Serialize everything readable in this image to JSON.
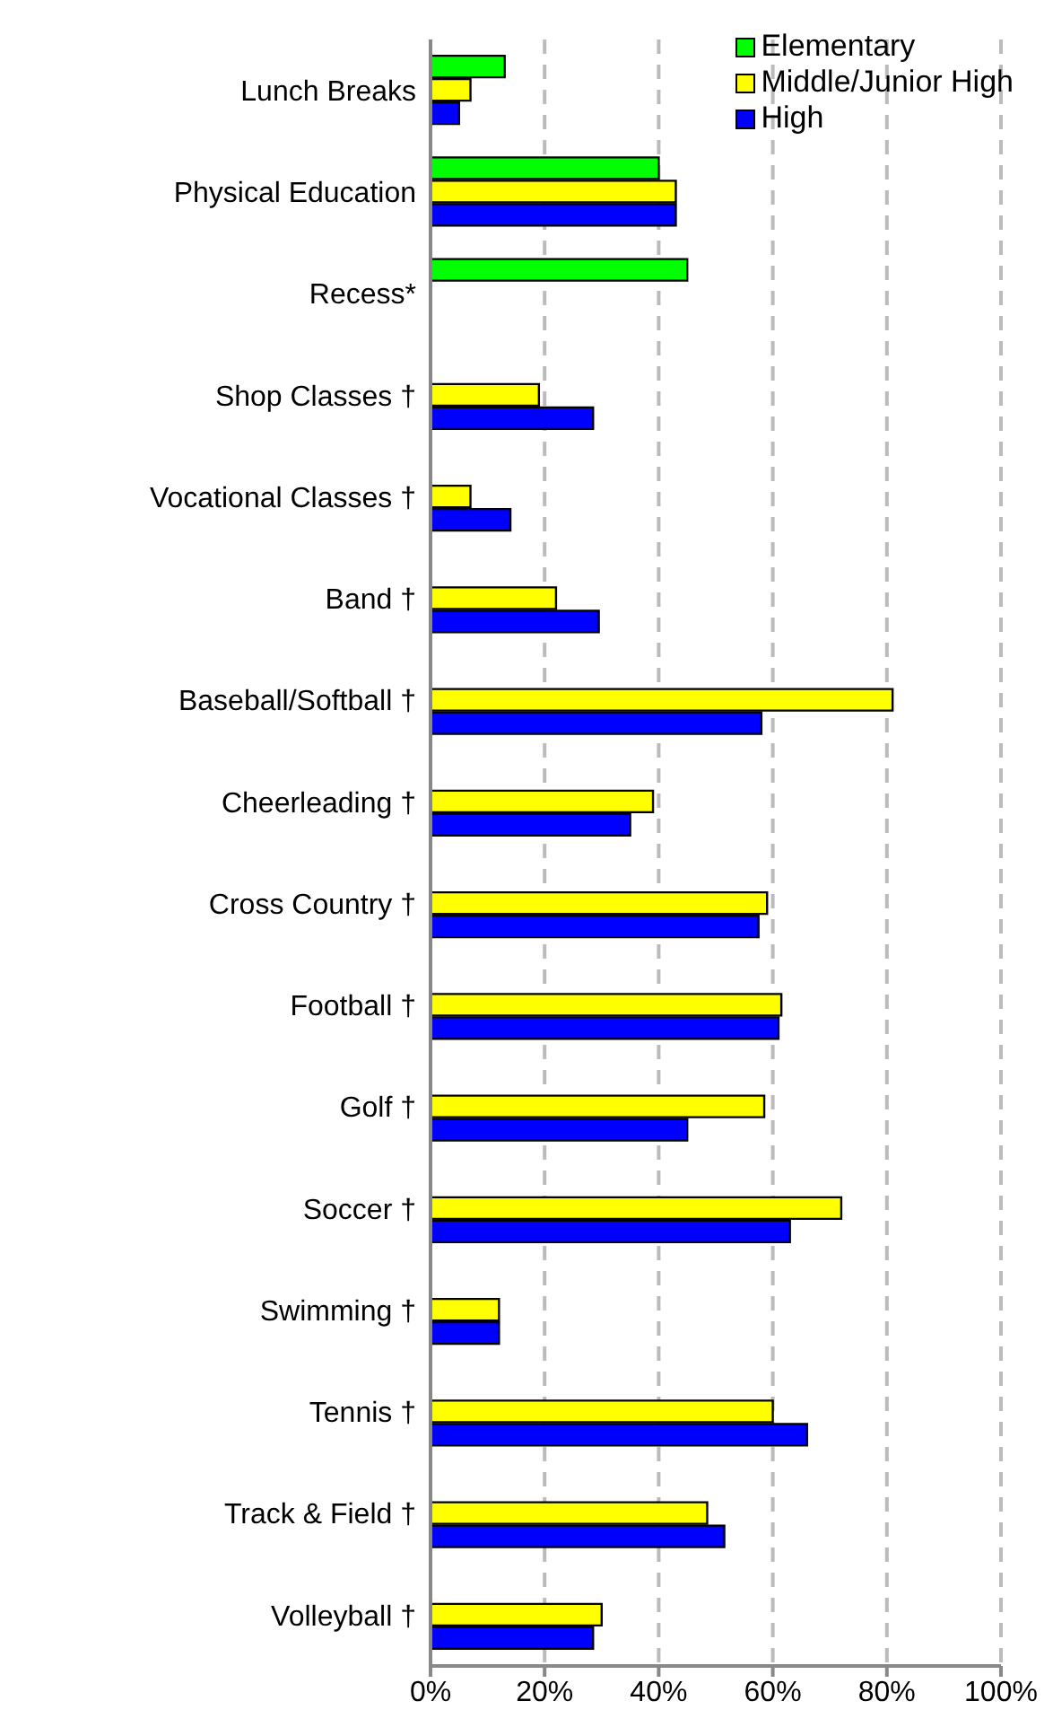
{
  "chart_data": {
    "type": "bar",
    "orientation": "horizontal",
    "categories": [
      "Lunch Breaks",
      "Physical Education",
      "Recess*",
      "Shop Classes †",
      "Vocational  Classes †",
      "Band †",
      "Baseball/Softball †",
      "Cheerleading †",
      "Cross Country †",
      "Football †",
      "Golf †",
      "Soccer †",
      "Swimming †",
      "Tennis †",
      "Track & Field †",
      "Volleyball †"
    ],
    "series": [
      {
        "name": "Elementary",
        "color": "#00ff00",
        "values": [
          13,
          40,
          45,
          null,
          null,
          null,
          null,
          null,
          null,
          null,
          null,
          null,
          null,
          null,
          null,
          null
        ]
      },
      {
        "name": "Middle/Junior High",
        "color": "#ffff00",
        "values": [
          7,
          43,
          null,
          19,
          7,
          22,
          81,
          39,
          59,
          61.5,
          58.5,
          72,
          12,
          60,
          48.5,
          30
        ]
      },
      {
        "name": "High",
        "color": "#0000ff",
        "values": [
          5,
          43,
          null,
          28.5,
          14,
          29.5,
          58,
          35,
          57.5,
          61,
          45,
          63,
          12,
          66,
          51.5,
          28.5
        ]
      }
    ],
    "xlim": [
      0,
      100
    ],
    "xticks": [
      {
        "value": 0,
        "label": "0%"
      },
      {
        "value": 20,
        "label": "20%"
      },
      {
        "value": 40,
        "label": "40%"
      },
      {
        "value": 60,
        "label": "60%"
      },
      {
        "value": 80,
        "label": "80%"
      },
      {
        "value": 100,
        "label": "100%"
      }
    ],
    "grid": "x",
    "legend": "top right"
  }
}
